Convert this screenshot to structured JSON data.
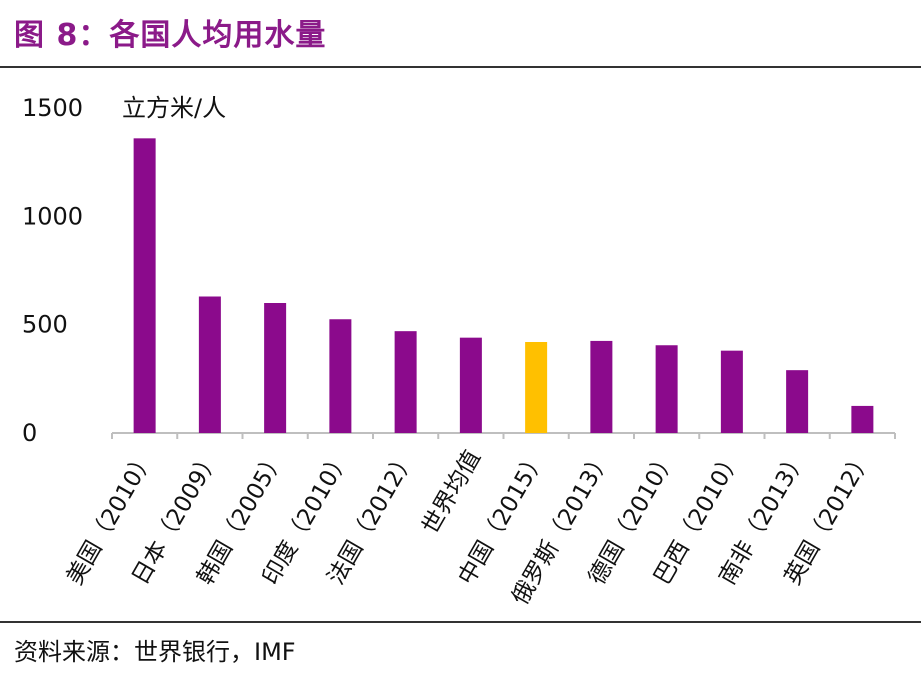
{
  "header": {
    "title": "图 8：各国人均用水量"
  },
  "footer": {
    "source": "资料来源：世界银行，IMF"
  },
  "colors": {
    "bar": "#8B0A8C",
    "highlight": "#FFC000",
    "title": "#8B1A89"
  },
  "chart_data": {
    "type": "bar",
    "title": "",
    "xlabel": "",
    "ylabel": "立方米/人",
    "ylim": [
      0,
      1500
    ],
    "yticks": [
      0,
      500,
      1000,
      1500
    ],
    "grid": false,
    "categories": [
      "美国（2010）",
      "日本（2009）",
      "韩国（2005）",
      "印度（2010）",
      "法国（2012）",
      "世界均值",
      "中国（2015）",
      "俄罗斯（2013）",
      "德国（2010）",
      "巴西（2010）",
      "南非（2013）",
      "英国（2012）"
    ],
    "values": [
      1360,
      630,
      600,
      525,
      470,
      440,
      420,
      425,
      405,
      380,
      290,
      125
    ],
    "highlight_index": 6
  }
}
